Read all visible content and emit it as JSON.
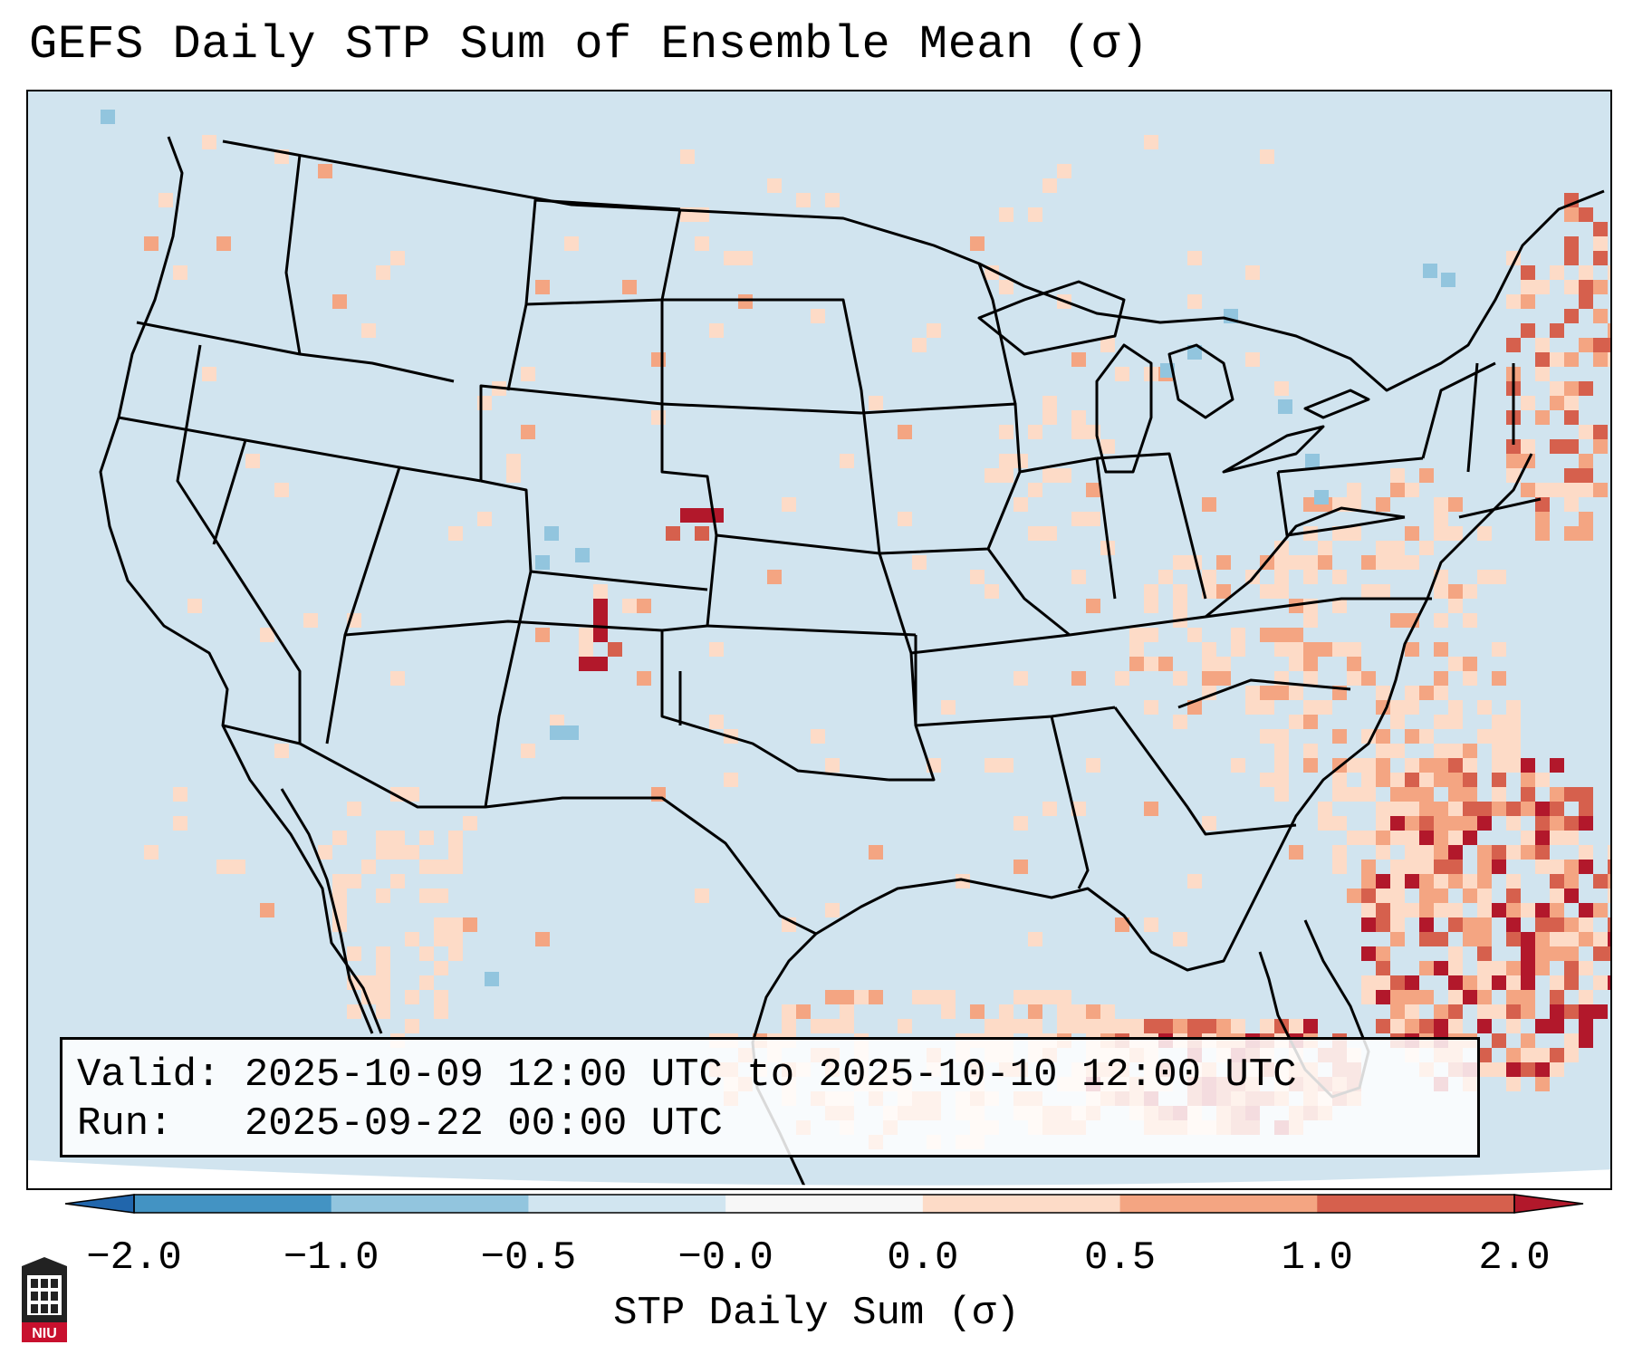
{
  "title": "GEFS Daily STP Sum of Ensemble Mean (σ)",
  "info": {
    "valid_line": "Valid: 2025-10-09 12:00 UTC to 2025-10-10 12:00 UTC",
    "run_line": "Run:   2025-09-22 00:00 UTC"
  },
  "colorbar": {
    "label": "STP Daily Sum (σ)",
    "ticks": [
      "−2.0",
      "−1.0",
      "−0.5",
      "−0.0",
      "0.0",
      "0.5",
      "1.0",
      "2.0"
    ],
    "colors": [
      "#2166ac",
      "#4393c3",
      "#92c5de",
      "#d1e5f0",
      "#f7f7f7",
      "#fddbc7",
      "#f4a582",
      "#d6604d",
      "#b2182b"
    ],
    "extend_low_color": "#2166ac",
    "extend_high_color": "#b2182b"
  },
  "logo": {
    "text": "NIU"
  },
  "map": {
    "background_color": "#d1e4ef",
    "region": "Contiguous United States with northern Mexico and Caribbean"
  }
}
